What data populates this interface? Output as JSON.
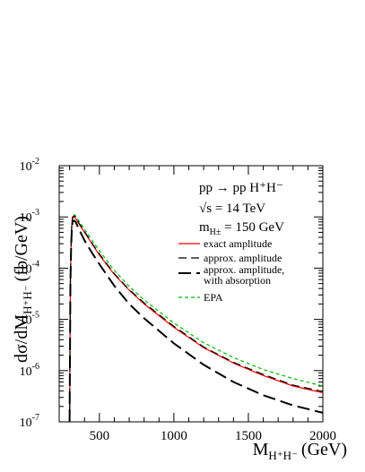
{
  "chart_data": {
    "type": "line",
    "xlabel": "M",
    "xlabel_sub": "H⁺H⁻",
    "xlabel_unit": "(GeV)",
    "ylabel": "dσ/dM",
    "ylabel_sub": "H⁺H⁻",
    "ylabel_unit": "(fb/GeV)",
    "xlim": [
      230,
      2000
    ],
    "ylim": [
      1e-07,
      0.01
    ],
    "yscale": "log",
    "grid": false,
    "legend_position": "top-right",
    "x_ticks": [
      {
        "value": 500,
        "label": "500"
      },
      {
        "value": 1000,
        "label": "1000"
      },
      {
        "value": 1500,
        "label": "1500"
      },
      {
        "value": 2000,
        "label": "2000"
      }
    ],
    "y_ticks": [
      {
        "exp": -7,
        "base": "10",
        "sup": "-7"
      },
      {
        "exp": -6,
        "base": "10",
        "sup": "-6"
      },
      {
        "exp": -5,
        "base": "10",
        "sup": "-5"
      },
      {
        "exp": -4,
        "base": "10",
        "sup": "-4"
      },
      {
        "exp": -3,
        "base": "10",
        "sup": "-3"
      },
      {
        "exp": -2,
        "base": "10",
        "sup": "-2"
      }
    ],
    "annotations": {
      "process": "pp → pp H⁺H⁻",
      "energy": "√s = 14 TeV",
      "mass_label": "m",
      "mass_sub": "H±",
      "mass_value": " = 150 GeV"
    },
    "series": [
      {
        "name": "exact amplitude",
        "color": "#ff0000",
        "dash": "solid",
        "width": 1.2,
        "x": [
          300,
          305,
          310,
          315,
          320,
          330,
          340,
          360,
          400,
          450,
          500,
          600,
          700,
          800,
          1000,
          1200,
          1400,
          1600,
          1800,
          2000
        ],
        "y": [
          1e-07,
          5e-05,
          0.0003,
          0.0007,
          0.00095,
          0.001,
          0.00095,
          0.00075,
          0.0005,
          0.0003,
          0.00018,
          7.5e-05,
          3.7e-05,
          2e-05,
          7e-06,
          2.8e-06,
          1.4e-06,
          8e-07,
          5e-07,
          3.7e-07
        ]
      },
      {
        "name": "approx. amplitude",
        "color": "#000000",
        "dash": "9,5",
        "width": 1.2,
        "x": [
          300,
          305,
          310,
          315,
          320,
          330,
          340,
          360,
          400,
          450,
          500,
          600,
          700,
          800,
          1000,
          1200,
          1400,
          1600,
          1800,
          2000
        ],
        "y": [
          1e-07,
          6e-05,
          0.00032,
          0.00075,
          0.001,
          0.00105,
          0.001,
          0.00078,
          0.00052,
          0.00031,
          0.00019,
          7.8e-05,
          3.8e-05,
          2.1e-05,
          7.3e-06,
          2.9e-06,
          1.45e-06,
          8.4e-07,
          5.2e-07,
          3.9e-07
        ]
      },
      {
        "name": "approx. amplitude,",
        "name_line2": "with absorption",
        "color": "#000000",
        "dash": "14,6",
        "width": 2,
        "x": [
          300,
          305,
          310,
          315,
          320,
          330,
          340,
          360,
          400,
          450,
          500,
          600,
          700,
          800,
          1000,
          1200,
          1400,
          1600,
          1800,
          2000
        ],
        "y": [
          1e-07,
          5e-05,
          0.00025,
          0.0006,
          0.0008,
          0.00085,
          0.0008,
          0.0006,
          0.00035,
          0.0002,
          0.00012,
          4.5e-05,
          2e-05,
          1.05e-05,
          3.4e-06,
          1.3e-06,
          6e-07,
          3.3e-07,
          2.1e-07,
          1.5e-07
        ]
      },
      {
        "name": "EPA",
        "color": "#00bb00",
        "dash": "4,3",
        "width": 1.2,
        "x": [
          300,
          305,
          310,
          315,
          320,
          330,
          340,
          360,
          400,
          450,
          500,
          600,
          700,
          800,
          1000,
          1200,
          1400,
          1600,
          1800,
          2000
        ],
        "y": [
          1e-07,
          5e-05,
          0.0003,
          0.00072,
          0.001,
          0.0011,
          0.00105,
          0.00085,
          0.00058,
          0.00035,
          0.00022,
          9e-05,
          4.4e-05,
          2.4e-05,
          8.5e-06,
          3.5e-06,
          1.8e-06,
          1.05e-06,
          7e-07,
          5e-07
        ]
      }
    ]
  }
}
